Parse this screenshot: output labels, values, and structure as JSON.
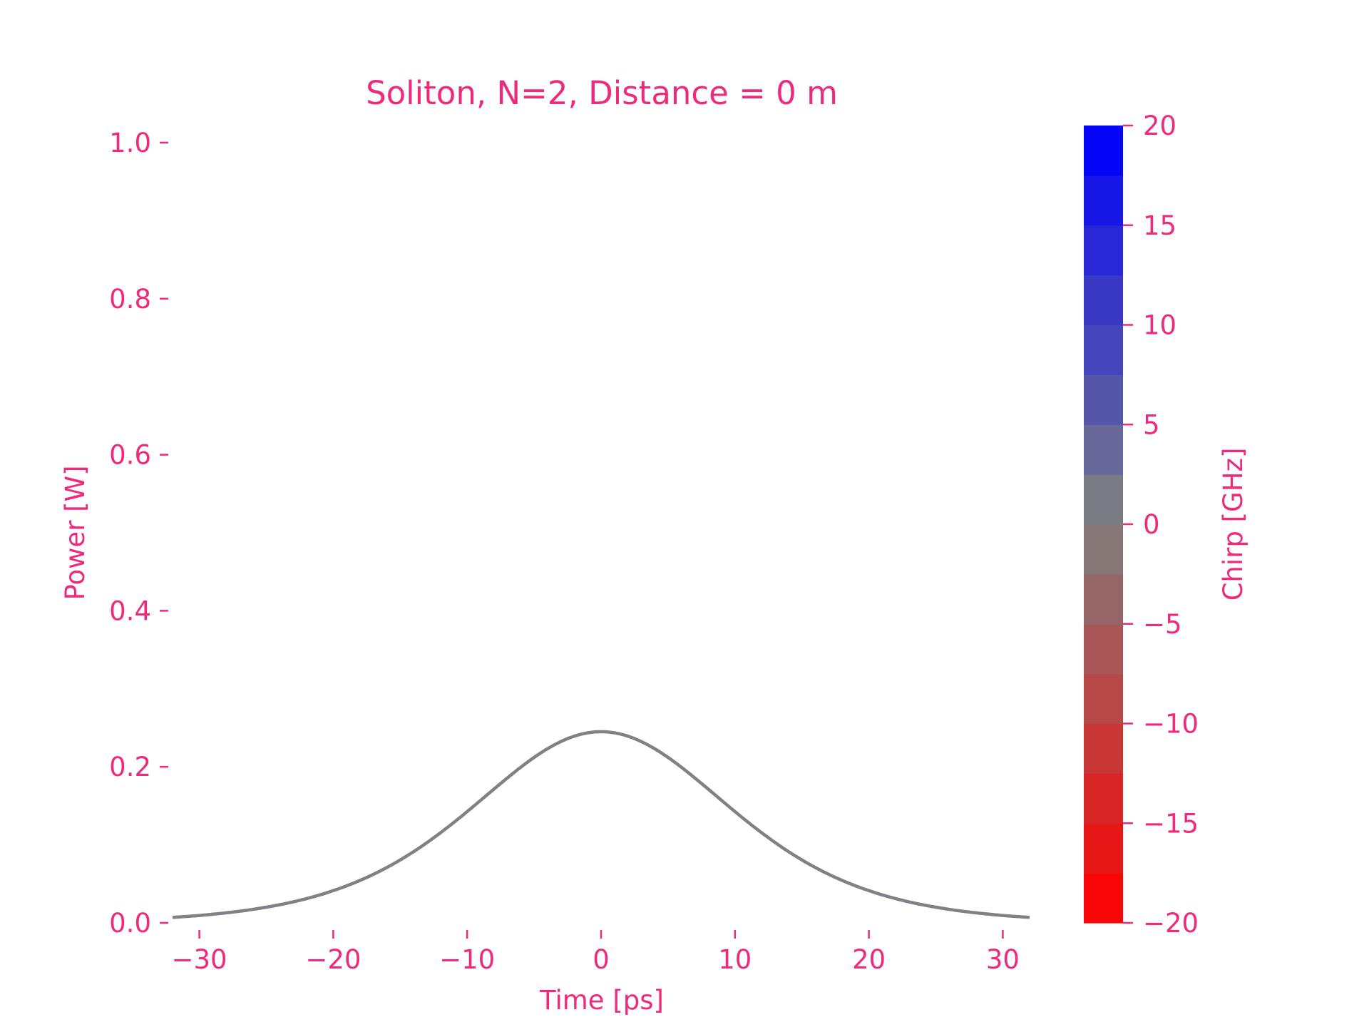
{
  "chart_data": {
    "type": "line",
    "title": "Soliton, N=2, Distance = 0 m",
    "xlabel": "Time [ps]",
    "ylabel": "Power [W]",
    "xlim": [
      -32,
      32
    ],
    "ylim": [
      0,
      1.0
    ],
    "xticks": [
      -30,
      -20,
      -10,
      0,
      10,
      20,
      30
    ],
    "xtick_labels": [
      "−30",
      "−20",
      "−10",
      "0",
      "10",
      "20",
      "30"
    ],
    "yticks": [
      0.0,
      0.2,
      0.4,
      0.6,
      0.8,
      1.0
    ],
    "ytick_labels": [
      "0.0",
      "0.2",
      "0.4",
      "0.6",
      "0.8",
      "1.0"
    ],
    "grid": false,
    "series": [
      {
        "shape": "sech^2",
        "peak_power": 0.245,
        "center": 0,
        "width_T0": 13,
        "color": "#808087"
      }
    ],
    "colorbar": {
      "label": "Chirp [GHz]",
      "range": [
        -20,
        20
      ],
      "ticks": [
        -20,
        -15,
        -10,
        -5,
        0,
        5,
        10,
        15,
        20
      ],
      "tick_labels": [
        "−20",
        "−15",
        "−10",
        "−5",
        "0",
        "5",
        "10",
        "15",
        "20"
      ],
      "band_colors": [
        "#f90606",
        "#e71616",
        "#d82626",
        "#c83636",
        "#b64848",
        "#a75757",
        "#966565",
        "#887777",
        "#7b7b84",
        "#68689a",
        "#5555aa",
        "#4646bc",
        "#3838c4",
        "#2828d6",
        "#1616e6",
        "#0505f7"
      ]
    },
    "text_color": "#ee2a7b"
  }
}
